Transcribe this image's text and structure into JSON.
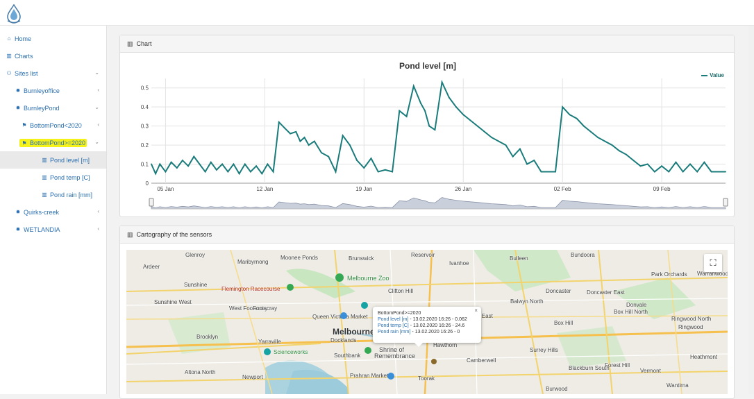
{
  "sidebar": {
    "items": [
      {
        "label": "Home",
        "icon": "home-icon",
        "glyph": "⌂"
      },
      {
        "label": "Charts",
        "icon": "bar-chart-icon",
        "glyph": "▥"
      },
      {
        "label": "Sites list",
        "icon": "sitemap-icon",
        "glyph": "⚇"
      },
      {
        "label": "Burnleyoffice",
        "icon": "gear-icon",
        "glyph": "✹"
      },
      {
        "label": "BurnleyPond",
        "icon": "gear-icon",
        "glyph": "✹"
      },
      {
        "label": "BottomPond<2020",
        "icon": "flag-icon",
        "glyph": "⚑"
      },
      {
        "label": "BottomPond>=2020",
        "icon": "flag-icon",
        "glyph": "⚑"
      },
      {
        "label": "Pond level [m]",
        "icon": "bar-chart-icon",
        "glyph": "▥"
      },
      {
        "label": "Pond temp [C]",
        "icon": "bar-chart-icon",
        "glyph": "▥"
      },
      {
        "label": "Pond rain [mm]",
        "icon": "bar-chart-icon",
        "glyph": "▥"
      },
      {
        "label": "Quirks-creek",
        "icon": "gear-icon",
        "glyph": "✹"
      },
      {
        "label": "WETLANDIA",
        "icon": "gear-icon",
        "glyph": "✹"
      }
    ]
  },
  "chart_panel": {
    "title": "Chart",
    "icon": "bar-chart-icon",
    "glyph": "▥"
  },
  "map_panel": {
    "title": "Cartography of the sensors",
    "icon": "bar-chart-icon",
    "glyph": "▥"
  },
  "chart_data": {
    "type": "line",
    "title": "Pond level [m]",
    "series": [
      {
        "name": "Value",
        "x": [
          0,
          0.3,
          0.6,
          1.0,
          1.4,
          1.8,
          2.2,
          2.6,
          3.0,
          3.4,
          3.8,
          4.2,
          4.6,
          5.0,
          5.4,
          5.8,
          6.2,
          6.6,
          7.0,
          7.4,
          7.8,
          8.2,
          8.6,
          9.0,
          9.4,
          9.8,
          10.2,
          10.5,
          10.8,
          11.1,
          11.5,
          12.0,
          12.5,
          13.0,
          13.5,
          14.0,
          14.5,
          15.0,
          15.5,
          16.0,
          16.5,
          17.0,
          17.5,
          18.0,
          18.5,
          19.0,
          19.3,
          19.6,
          20.0,
          20.5,
          21.0,
          21.5,
          22.0,
          22.5,
          23.0,
          23.5,
          24.0,
          24.5,
          25.0,
          25.5,
          26.0,
          26.5,
          27.0,
          27.5,
          28.0,
          28.5,
          29.0,
          29.5,
          30.0,
          30.5,
          31.0,
          31.5,
          32.0,
          32.5,
          33.0,
          33.5,
          34.0,
          34.5,
          35.0,
          35.5,
          36.0,
          36.5,
          37.0,
          37.5,
          38.0,
          38.5,
          39.0,
          39.5,
          40.0,
          40.5
        ],
        "values": [
          0.1,
          0.05,
          0.1,
          0.06,
          0.11,
          0.08,
          0.12,
          0.09,
          0.14,
          0.1,
          0.06,
          0.11,
          0.07,
          0.1,
          0.06,
          0.1,
          0.05,
          0.1,
          0.06,
          0.09,
          0.05,
          0.1,
          0.06,
          0.32,
          0.29,
          0.26,
          0.27,
          0.22,
          0.24,
          0.2,
          0.22,
          0.16,
          0.14,
          0.06,
          0.25,
          0.2,
          0.12,
          0.08,
          0.13,
          0.06,
          0.07,
          0.06,
          0.38,
          0.35,
          0.51,
          0.42,
          0.38,
          0.3,
          0.28,
          0.53,
          0.45,
          0.4,
          0.36,
          0.33,
          0.3,
          0.27,
          0.24,
          0.22,
          0.2,
          0.14,
          0.18,
          0.1,
          0.12,
          0.06,
          0.06,
          0.06,
          0.4,
          0.36,
          0.34,
          0.3,
          0.27,
          0.24,
          0.22,
          0.2,
          0.17,
          0.15,
          0.12,
          0.09,
          0.1,
          0.06,
          0.09,
          0.06,
          0.11,
          0.06,
          0.1,
          0.06,
          0.11,
          0.06,
          0.06,
          0.06
        ]
      }
    ],
    "x_ticks": [
      {
        "x": 1,
        "label": "05 Jan"
      },
      {
        "x": 8,
        "label": "12 Jan"
      },
      {
        "x": 15,
        "label": "19 Jan"
      },
      {
        "x": 22,
        "label": "26 Jan"
      },
      {
        "x": 29,
        "label": "02 Feb"
      },
      {
        "x": 36,
        "label": "09 Feb"
      }
    ],
    "y_ticks": [
      0,
      0.1,
      0.2,
      0.3,
      0.4,
      0.5
    ],
    "xlim": [
      0,
      40.5
    ],
    "ylim": [
      0,
      0.55
    ],
    "grid": true,
    "legend": "top-right",
    "line_color": "#1a7b7b"
  },
  "map": {
    "labels": [
      {
        "text": "Glenroy",
        "name": "map-label-glenroy"
      },
      {
        "text": "Reservoir",
        "name": "map-label-reservoir"
      },
      {
        "text": "Bundoora",
        "name": "map-label-bundoora"
      },
      {
        "text": "Ardeer",
        "name": "map-label-ardeer"
      },
      {
        "text": "Maribyrnong",
        "name": "map-label-maribyrnong"
      },
      {
        "text": "Moonee Ponds",
        "name": "map-label-moonee-ponds"
      },
      {
        "text": "Brunswick",
        "name": "map-label-brunswick"
      },
      {
        "text": "Ivanhoe",
        "name": "map-label-ivanhoe"
      },
      {
        "text": "Bulleen",
        "name": "map-label-bulleen"
      },
      {
        "text": "Sunshine",
        "name": "map-label-sunshine"
      },
      {
        "text": "Flemington Racecourse",
        "name": "map-label-flemington-racecourse"
      },
      {
        "text": "Melbourne Zoo",
        "name": "map-label-melbourne-zoo"
      },
      {
        "text": "Clifton Hill",
        "name": "map-label-clifton-hill"
      },
      {
        "text": "Doncaster",
        "name": "map-label-doncaster"
      },
      {
        "text": "Park Orchards",
        "name": "map-label-park-orchards"
      },
      {
        "text": "Warranwood",
        "name": "map-label-warranwood"
      },
      {
        "text": "Sunshine West",
        "name": "map-label-sunshine-west"
      },
      {
        "text": "West Footscray",
        "name": "map-label-west-footscray"
      },
      {
        "text": "Footscray",
        "name": "map-label-footscray"
      },
      {
        "text": "Balwyn North",
        "name": "map-label-balwyn-north"
      },
      {
        "text": "Doncaster East",
        "name": "map-label-doncaster-east"
      },
      {
        "text": "Donvale",
        "name": "map-label-donvale"
      },
      {
        "text": "Queen Victoria Market",
        "name": "map-label-queen-victoria-market"
      },
      {
        "text": "Kew East",
        "name": "map-label-kew-east"
      },
      {
        "text": "Box Hill North",
        "name": "map-label-box-hill-north"
      },
      {
        "text": "Ringwood North",
        "name": "map-label-ringwood-north"
      },
      {
        "text": "Melbourne",
        "name": "map-label-melbourne"
      },
      {
        "text": "Box Hill",
        "name": "map-label-box-hill"
      },
      {
        "text": "Ringwood",
        "name": "map-label-ringwood"
      },
      {
        "text": "Brooklyn",
        "name": "map-label-brooklyn"
      },
      {
        "text": "Yarraville",
        "name": "map-label-yarraville"
      },
      {
        "text": "Docklands",
        "name": "map-label-docklands"
      },
      {
        "text": "Hawthorn",
        "name": "map-label-hawthorn"
      },
      {
        "text": "Scienceworks",
        "name": "map-label-scienceworks"
      },
      {
        "text": "Southbank",
        "name": "map-label-southbank"
      },
      {
        "text": "Shrine of",
        "name": "map-label-shrine-line1"
      },
      {
        "text": "Remembrance",
        "name": "map-label-shrine-line2"
      },
      {
        "text": "Camberwell",
        "name": "map-label-camberwell"
      },
      {
        "text": "Surrey Hills",
        "name": "map-label-surrey-hills"
      },
      {
        "text": "Heathmont",
        "name": "map-label-heathmont"
      },
      {
        "text": "Altona North",
        "name": "map-label-altona-north"
      },
      {
        "text": "Forest Hill",
        "name": "map-label-forest-hill"
      },
      {
        "text": "Blackburn South",
        "name": "map-label-blackburn-south"
      },
      {
        "text": "Vermont",
        "name": "map-label-vermont"
      },
      {
        "text": "Newport",
        "name": "map-label-newport"
      },
      {
        "text": "Prahran Market",
        "name": "map-label-prahran-market"
      },
      {
        "text": "Toorak",
        "name": "map-label-toorak"
      },
      {
        "text": "Burwood",
        "name": "map-label-burwood"
      },
      {
        "text": "Wantirna",
        "name": "map-label-wantirna"
      }
    ],
    "popup": {
      "title": "BottomPond>=2020",
      "rows": [
        {
          "link": "Pond level [m]",
          "value": " - 13.02.2020 16:26 - 0.062"
        },
        {
          "link": "Pond temp [C]",
          "value": " - 13.02.2020 16:26 - 24.6"
        },
        {
          "link": "Pond rain [mm]",
          "value": " - 13.02.2020 16:26 - 0"
        }
      ],
      "close": "×"
    },
    "fullscreen_glyph": "⛶"
  }
}
